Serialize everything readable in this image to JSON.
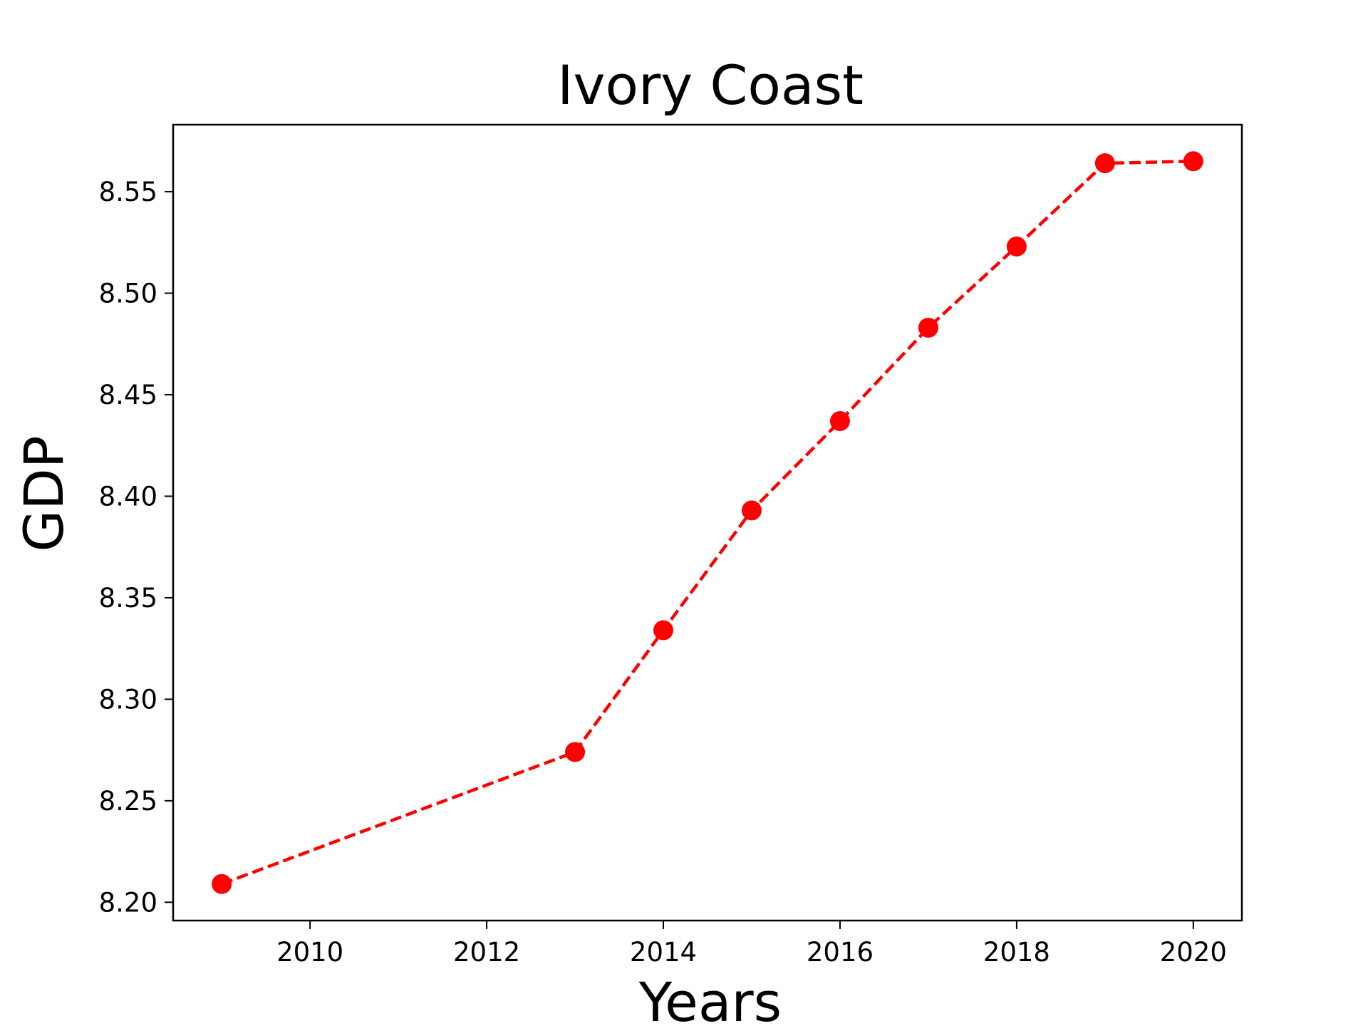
{
  "chart_data": {
    "type": "line",
    "title": "Ivory Coast",
    "xlabel": "Years",
    "ylabel": "GDP",
    "x": [
      2009,
      2013,
      2014,
      2015,
      2016,
      2017,
      2018,
      2019,
      2020
    ],
    "series": [
      {
        "values": [
          8.209,
          8.274,
          8.334,
          8.393,
          8.437,
          8.483,
          8.523,
          8.564,
          8.565
        ],
        "color": "#ff0000",
        "line_style": "dashed",
        "marker": "circle"
      }
    ],
    "xlim": [
      2008.45,
      2020.55
    ],
    "ylim": [
      8.191,
      8.583
    ],
    "xticks": [
      2010,
      2012,
      2014,
      2016,
      2018,
      2020
    ],
    "yticks": [
      8.2,
      8.25,
      8.3,
      8.35,
      8.4,
      8.45,
      8.5,
      8.55
    ],
    "ytick_labels": [
      "8.20",
      "8.25",
      "8.30",
      "8.35",
      "8.40",
      "8.45",
      "8.50",
      "8.55"
    ],
    "xtick_labels": [
      "2010",
      "2012",
      "2014",
      "2016",
      "2018",
      "2020"
    ],
    "grid": false,
    "legend": "none"
  }
}
